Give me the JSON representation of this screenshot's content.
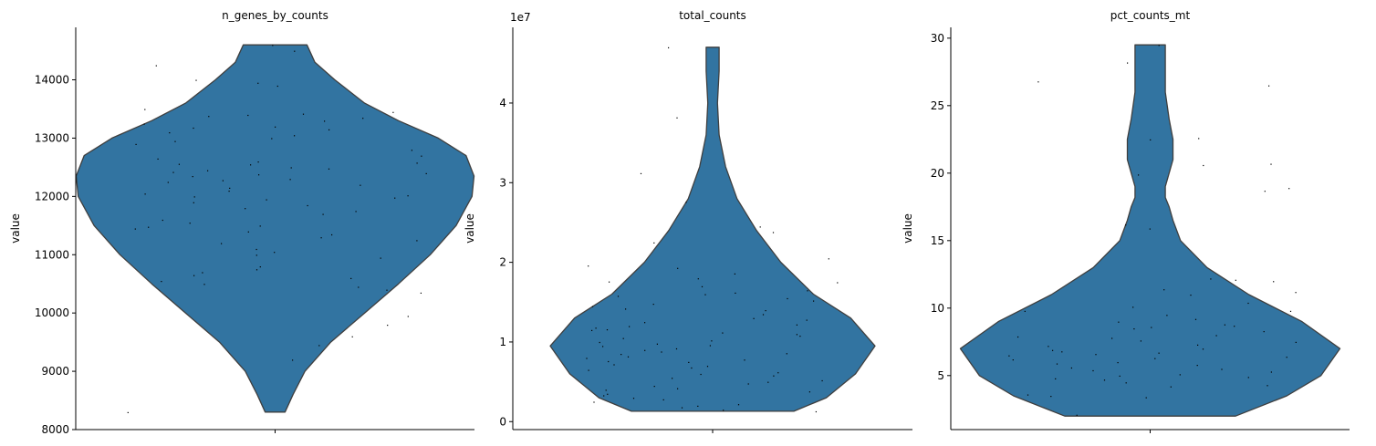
{
  "colors": {
    "violin_fill": "#3274a1",
    "violin_edge": "#3f3f3f",
    "point": "#000000",
    "axis": "#000000"
  },
  "chart_data": [
    {
      "type": "violin",
      "title": "n_genes_by_counts",
      "ylabel": "value",
      "offset_label": "",
      "ylim": [
        8000,
        14900
      ],
      "yticks": [
        8000,
        9000,
        10000,
        11000,
        12000,
        13000,
        14000
      ],
      "ytick_labels": [
        "8000",
        "9000",
        "10000",
        "11000",
        "12000",
        "13000",
        "14000"
      ],
      "violin_range": [
        8300,
        14600
      ],
      "density_profile": [
        [
          8300,
          0.05
        ],
        [
          8600,
          0.09
        ],
        [
          9000,
          0.15
        ],
        [
          9500,
          0.28
        ],
        [
          10000,
          0.45
        ],
        [
          10500,
          0.62
        ],
        [
          11000,
          0.78
        ],
        [
          11500,
          0.91
        ],
        [
          12000,
          0.99
        ],
        [
          12350,
          1.0
        ],
        [
          12700,
          0.96
        ],
        [
          13000,
          0.82
        ],
        [
          13300,
          0.62
        ],
        [
          13600,
          0.45
        ],
        [
          14000,
          0.3
        ],
        [
          14300,
          0.2
        ],
        [
          14600,
          0.16
        ]
      ],
      "points": [
        14600,
        14500,
        14250,
        14000,
        13950,
        13900,
        13500,
        13450,
        13420,
        13400,
        13380,
        13350,
        13300,
        13250,
        13200,
        13180,
        13150,
        13100,
        13050,
        13000,
        12950,
        12900,
        12800,
        12700,
        12650,
        12600,
        12580,
        12560,
        12550,
        12500,
        12480,
        12450,
        12420,
        12400,
        12380,
        12350,
        12300,
        12280,
        12250,
        12200,
        12150,
        12100,
        12050,
        12020,
        12000,
        11980,
        11950,
        11900,
        11850,
        11800,
        11750,
        11700,
        11600,
        11550,
        11500,
        11480,
        11450,
        11400,
        11350,
        11300,
        11250,
        11200,
        11100,
        11050,
        11000,
        10950,
        10800,
        10750,
        10700,
        10650,
        10600,
        10550,
        10500,
        10450,
        10400,
        10350,
        9950,
        9800,
        9600,
        9450,
        9200,
        8300
      ]
    },
    {
      "type": "violin",
      "title": "total_counts",
      "ylabel": "value",
      "offset_label": "1e7",
      "ylim": [
        -0.1,
        4.95
      ],
      "yticks": [
        0,
        1,
        2,
        3,
        4
      ],
      "ytick_labels": [
        "0",
        "1",
        "2",
        "3",
        "4"
      ],
      "violin_range": [
        0.13,
        4.7
      ],
      "density_profile": [
        [
          0.13,
          0.5
        ],
        [
          0.3,
          0.7
        ],
        [
          0.6,
          0.88
        ],
        [
          0.95,
          1.0
        ],
        [
          1.3,
          0.85
        ],
        [
          1.6,
          0.62
        ],
        [
          2.0,
          0.42
        ],
        [
          2.4,
          0.27
        ],
        [
          2.8,
          0.15
        ],
        [
          3.2,
          0.08
        ],
        [
          3.6,
          0.04
        ],
        [
          4.0,
          0.03
        ],
        [
          4.4,
          0.04
        ],
        [
          4.7,
          0.04
        ]
      ],
      "points": [
        4.7,
        3.82,
        3.12,
        2.76,
        2.45,
        2.38,
        2.25,
        2.05,
        1.96,
        1.93,
        1.86,
        1.8,
        1.76,
        1.75,
        1.7,
        1.65,
        1.62,
        1.6,
        1.58,
        1.55,
        1.52,
        1.48,
        1.45,
        1.42,
        1.4,
        1.35,
        1.3,
        1.28,
        1.25,
        1.22,
        1.2,
        1.18,
        1.16,
        1.15,
        1.12,
        1.1,
        1.08,
        1.05,
        1.02,
        1.0,
        0.98,
        0.96,
        0.95,
        0.92,
        0.9,
        0.88,
        0.86,
        0.85,
        0.82,
        0.8,
        0.78,
        0.76,
        0.75,
        0.72,
        0.7,
        0.68,
        0.65,
        0.62,
        0.6,
        0.58,
        0.55,
        0.52,
        0.5,
        0.48,
        0.45,
        0.42,
        0.4,
        0.38,
        0.35,
        0.33,
        0.3,
        0.28,
        0.25,
        0.22,
        0.2,
        0.18,
        0.15,
        0.13
      ]
    },
    {
      "type": "violin",
      "title": "pct_counts_mt",
      "ylabel": "value",
      "offset_label": "",
      "ylim": [
        1.0,
        30.8
      ],
      "yticks": [
        5,
        10,
        15,
        20,
        25,
        30
      ],
      "ytick_labels": [
        "5",
        "10",
        "15",
        "20",
        "25",
        "30"
      ],
      "violin_range": [
        2.0,
        29.5
      ],
      "density_profile": [
        [
          2.0,
          0.45
        ],
        [
          3.5,
          0.72
        ],
        [
          5.0,
          0.9
        ],
        [
          7.0,
          1.0
        ],
        [
          9.0,
          0.8
        ],
        [
          11.0,
          0.52
        ],
        [
          13.0,
          0.3
        ],
        [
          15.0,
          0.16
        ],
        [
          16.5,
          0.12
        ],
        [
          17.5,
          0.1
        ],
        [
          18.2,
          0.08
        ],
        [
          19.0,
          0.08
        ],
        [
          20.0,
          0.1
        ],
        [
          21.0,
          0.12
        ],
        [
          22.5,
          0.12
        ],
        [
          24.0,
          0.1
        ],
        [
          26.0,
          0.08
        ],
        [
          28.0,
          0.08
        ],
        [
          29.5,
          0.08
        ]
      ],
      "points": [
        29.5,
        28.2,
        26.8,
        26.5,
        22.6,
        22.5,
        20.7,
        20.6,
        19.9,
        18.9,
        18.7,
        16.2,
        15.9,
        12.2,
        12.1,
        12.0,
        11.4,
        11.2,
        11.0,
        10.4,
        10.1,
        9.8,
        9.8,
        9.5,
        9.2,
        9.0,
        8.8,
        8.7,
        8.6,
        8.5,
        8.3,
        8.0,
        7.9,
        7.8,
        7.6,
        7.5,
        7.3,
        7.2,
        7.0,
        6.9,
        6.8,
        6.7,
        6.6,
        6.5,
        6.4,
        6.3,
        6.2,
        6.0,
        5.9,
        5.8,
        5.6,
        5.5,
        5.4,
        5.3,
        5.1,
        5.0,
        4.9,
        4.8,
        4.7,
        4.5,
        4.3,
        4.2,
        3.6,
        3.5,
        3.4,
        2.1
      ]
    }
  ]
}
